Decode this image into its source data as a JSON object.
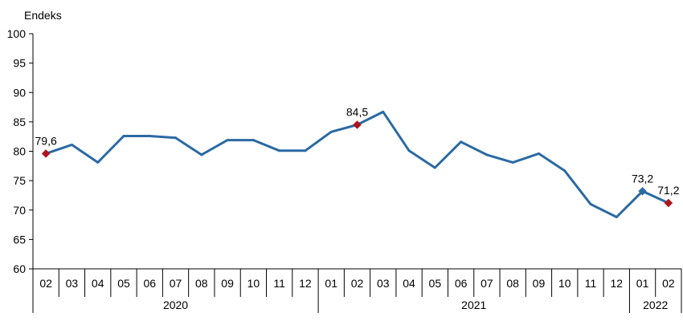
{
  "chart_data": {
    "type": "line",
    "title": "",
    "ylabel": "Endeks",
    "xlabel": "",
    "ylim": [
      60,
      100
    ],
    "yticks": [
      60,
      65,
      70,
      75,
      80,
      85,
      90,
      95,
      100
    ],
    "ytick_labels": [
      "60",
      "65",
      "70",
      "75",
      "80",
      "85",
      "90",
      "95",
      "100"
    ],
    "grid": false,
    "legend": "none",
    "colors": {
      "line": "#2a6aa3",
      "marker": "#b0141c",
      "axis": "#000000"
    },
    "categories": [
      "02",
      "03",
      "04",
      "05",
      "06",
      "07",
      "08",
      "09",
      "10",
      "11",
      "12",
      "01",
      "02",
      "03",
      "04",
      "05",
      "06",
      "07",
      "08",
      "09",
      "10",
      "11",
      "12",
      "01",
      "02"
    ],
    "year_groups": [
      {
        "label": "2020",
        "start": 0,
        "count": 11
      },
      {
        "label": "2021",
        "start": 11,
        "count": 12
      },
      {
        "label": "2022",
        "start": 23,
        "count": 2
      }
    ],
    "series": [
      {
        "values": [
          79.6,
          81.1,
          78.1,
          82.6,
          82.6,
          82.3,
          79.4,
          81.9,
          81.9,
          80.1,
          80.1,
          83.3,
          84.5,
          86.7,
          80.1,
          77.2,
          81.6,
          79.4,
          78.1,
          79.6,
          76.7,
          71.0,
          68.8,
          73.2,
          71.2
        ]
      }
    ],
    "annotations": [
      {
        "index": 0,
        "label": "79,6",
        "marker": "diamond-red"
      },
      {
        "index": 12,
        "label": "84,5",
        "marker": "diamond-red"
      },
      {
        "index": 23,
        "label": "73,2",
        "marker": "diamond-blue"
      },
      {
        "index": 24,
        "label": "71,2",
        "marker": "diamond-red"
      }
    ]
  }
}
